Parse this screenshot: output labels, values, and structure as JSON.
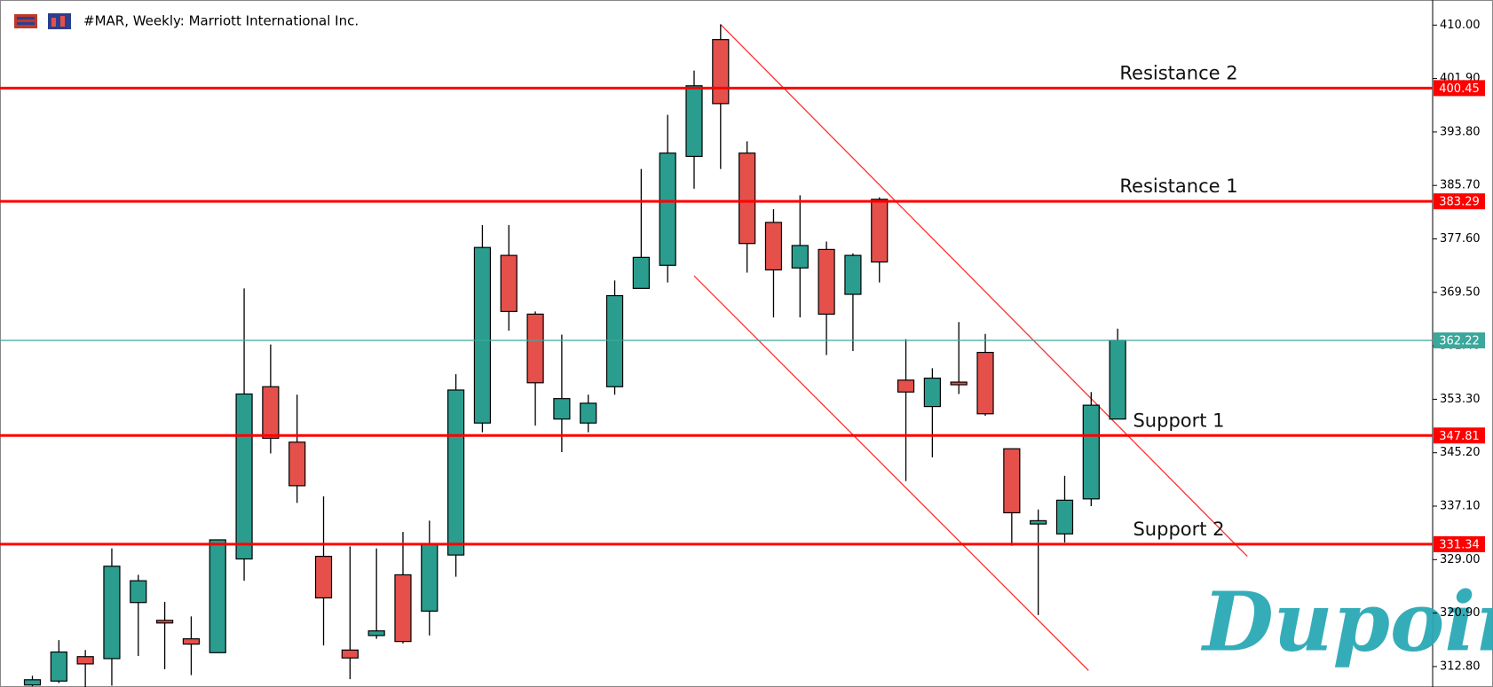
{
  "chart_data": {
    "type": "candlestick",
    "title": "#MAR, Weekly:  Marriott International Inc.",
    "watermark": "Dupoin",
    "up_color": "#2a9d8f",
    "down_color": "#e5504b",
    "open": [
      310.0,
      310.6,
      314.3,
      314.0,
      322.5,
      319.8,
      317.0,
      314.9,
      329.1,
      355.2,
      346.8,
      329.5,
      315.3,
      317.5,
      326.7,
      321.2,
      329.7,
      349.7,
      375.1,
      366.2,
      350.3,
      349.7,
      355.2,
      370.1,
      373.6,
      390.1,
      407.8,
      390.6,
      380.1,
      373.2,
      376.0,
      369.2,
      383.6,
      356.2,
      352.2,
      355.9,
      360.4,
      345.8,
      334.4,
      332.9,
      338.2,
      350.3
    ],
    "high": [
      311.4,
      316.8,
      315.3,
      330.7,
      326.7,
      322.6,
      320.4,
      332.0,
      370.1,
      361.6,
      354.0,
      338.6,
      331.0,
      330.7,
      333.2,
      334.9,
      357.1,
      379.7,
      379.7,
      366.6,
      363.1,
      354.0,
      371.3,
      388.2,
      396.4,
      403.1,
      410.1,
      392.4,
      382.1,
      384.2,
      377.2,
      375.4,
      383.9,
      362.4,
      358.0,
      365.0,
      363.2,
      345.8,
      336.6,
      341.7,
      354.4,
      364.0
    ],
    "low": [
      309.8,
      310.3,
      309.7,
      309.9,
      314.4,
      312.4,
      311.5,
      314.9,
      325.8,
      345.1,
      337.6,
      316.0,
      310.9,
      317.0,
      316.3,
      317.5,
      326.4,
      348.3,
      363.7,
      349.3,
      345.3,
      348.3,
      354.0,
      370.1,
      371.0,
      385.2,
      388.2,
      372.5,
      365.7,
      365.7,
      360.0,
      360.6,
      371.0,
      340.9,
      344.5,
      354.1,
      350.8,
      331.1,
      320.6,
      331.6,
      337.1,
      350.3
    ],
    "close": [
      310.8,
      315.0,
      313.2,
      328.0,
      325.8,
      319.4,
      316.2,
      332.0,
      354.1,
      347.4,
      340.2,
      323.2,
      314.1,
      318.2,
      316.6,
      331.4,
      354.7,
      376.3,
      366.6,
      355.8,
      353.4,
      352.7,
      369.0,
      374.8,
      390.6,
      400.8,
      398.1,
      376.9,
      372.9,
      376.6,
      366.2,
      375.1,
      374.1,
      354.4,
      356.5,
      355.5,
      351.1,
      336.1,
      334.9,
      338.0,
      352.4,
      362.22
    ],
    "ylim": [
      309.7,
      413.8
    ],
    "yticks": [
      {
        "value": 410,
        "label": "410.00"
      },
      {
        "value": 401.9,
        "label": "401.90"
      },
      {
        "value": 393.8,
        "label": "393.80"
      },
      {
        "value": 385.7,
        "label": "385.70"
      },
      {
        "value": 377.6,
        "label": "377.60"
      },
      {
        "value": 369.5,
        "label": "369.50"
      },
      {
        "value": 361.4,
        "label": "361.40"
      },
      {
        "value": 353.3,
        "label": "353.30"
      },
      {
        "value": 345.2,
        "label": "345.20"
      },
      {
        "value": 337.1,
        "label": "337.10"
      },
      {
        "value": 329,
        "label": "329.00"
      },
      {
        "value": 320.9,
        "label": "320.90"
      },
      {
        "value": 312.8,
        "label": "312.80"
      }
    ],
    "levels": [
      {
        "name": "Resistance 2",
        "value": 400.45,
        "label": "400.45",
        "color": "#ff0000"
      },
      {
        "name": "Resistance 1",
        "value": 383.29,
        "label": "383.29",
        "color": "#ff0000"
      },
      {
        "name": "Support 1",
        "value": 347.81,
        "label": "347.81",
        "color": "#ff0000"
      },
      {
        "name": "Support 2",
        "value": 331.34,
        "label": "331.34",
        "color": "#ff0000"
      },
      {
        "value": 362.22,
        "label": "362.22",
        "color": "#3aa89b"
      }
    ],
    "channel": [
      {
        "x": [
          26.0,
          45.9
        ],
        "y": [
          410.1,
          329.5
        ],
        "color": "#ff3030"
      },
      {
        "x": [
          25.0,
          39.9
        ],
        "y": [
          372.0,
          312.2
        ],
        "color": "#ff3030"
      }
    ]
  }
}
